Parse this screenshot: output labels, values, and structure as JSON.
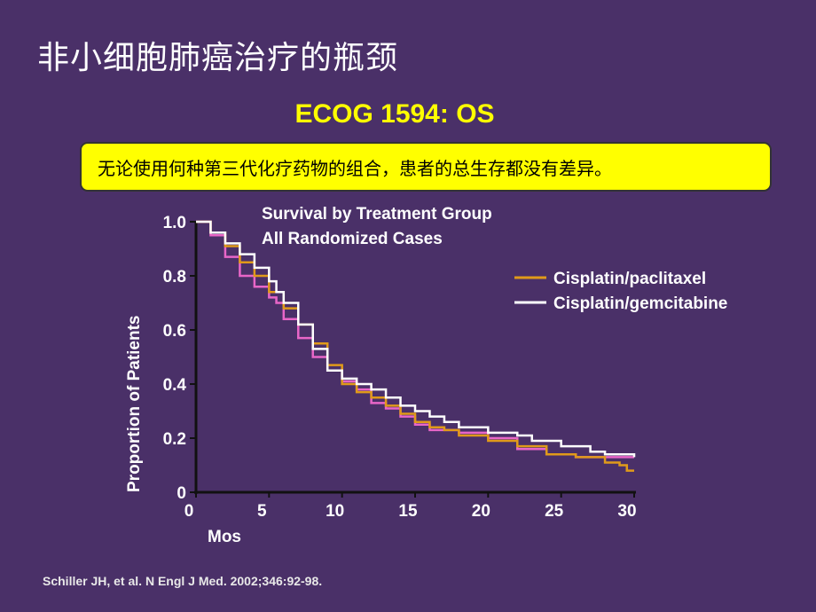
{
  "slide": {
    "title": "非小细胞肺癌治疗的瓶颈",
    "subtitle": "ECOG 1594: OS",
    "callout": "无论使用何种第三代化疗药物的组合，患者的总生存都没有差异。",
    "citation": "Schiller JH, et al. N Engl J Med. 2002;346:92-98."
  },
  "chart_data": {
    "type": "line",
    "step": true,
    "title": "Survival by Treatment Group",
    "subtitle": "All Randomized Cases",
    "xlabel": "Mos",
    "ylabel": "Proportion of Patients",
    "xlim": [
      0,
      30
    ],
    "ylim": [
      0,
      1.0
    ],
    "xticks": [
      0,
      5,
      10,
      15,
      20,
      25,
      30
    ],
    "yticks": [
      0,
      0.2,
      0.4,
      0.6,
      0.8,
      1.0
    ],
    "ytick_labels": [
      "0",
      "0.2",
      "0.4",
      "0.6",
      "0.8",
      "1.0"
    ],
    "grid": false,
    "legend_position": "right",
    "series": [
      {
        "name": "Cisplatin/paclitaxel",
        "color": "#e09a1a",
        "x": [
          0,
          1,
          2,
          3,
          4,
          5,
          6,
          7,
          8,
          9,
          10,
          11,
          12,
          13,
          14,
          15,
          16,
          17,
          18,
          20,
          22,
          24,
          26,
          28,
          29,
          29.5,
          30
        ],
        "y": [
          1,
          0.96,
          0.91,
          0.85,
          0.8,
          0.74,
          0.68,
          0.62,
          0.55,
          0.47,
          0.4,
          0.37,
          0.35,
          0.32,
          0.29,
          0.26,
          0.24,
          0.23,
          0.21,
          0.19,
          0.17,
          0.14,
          0.13,
          0.11,
          0.1,
          0.08,
          0.08
        ]
      },
      {
        "name": "Cisplatin/gemcitabine",
        "color": "#ffffff",
        "x": [
          0,
          1,
          2,
          3,
          4,
          5,
          5.5,
          6,
          7,
          8,
          9,
          10,
          11,
          12,
          13,
          14,
          15,
          16,
          17,
          18,
          20,
          22,
          23,
          25,
          27,
          28,
          30
        ],
        "y": [
          1,
          0.96,
          0.92,
          0.88,
          0.83,
          0.78,
          0.74,
          0.7,
          0.62,
          0.53,
          0.45,
          0.42,
          0.4,
          0.38,
          0.35,
          0.32,
          0.3,
          0.28,
          0.26,
          0.24,
          0.22,
          0.21,
          0.19,
          0.17,
          0.15,
          0.14,
          0.13
        ]
      },
      {
        "color": "#e866c8",
        "x": [
          0,
          1,
          2,
          3,
          4,
          5,
          5.5,
          6,
          7,
          8,
          9,
          10,
          11,
          12,
          13,
          14,
          15,
          16,
          18,
          20,
          22,
          24,
          26,
          28,
          30
        ],
        "y": [
          1,
          0.95,
          0.87,
          0.8,
          0.76,
          0.72,
          0.7,
          0.64,
          0.57,
          0.5,
          0.45,
          0.41,
          0.38,
          0.33,
          0.31,
          0.28,
          0.25,
          0.23,
          0.22,
          0.2,
          0.16,
          0.14,
          0.13,
          0.13,
          0.13
        ]
      }
    ]
  }
}
